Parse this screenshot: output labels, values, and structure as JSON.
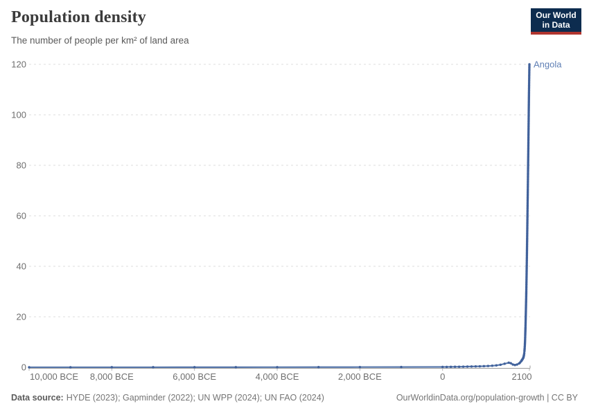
{
  "header": {
    "title": "Population density",
    "subtitle": "The number of people per km² of land area"
  },
  "logo": {
    "line1": "Our World",
    "line2": "in Data"
  },
  "footer": {
    "source_label": "Data source:",
    "sources": "HYDE (2023); Gapminder (2022); UN WPP (2024); UN FAO (2024)",
    "link": "OurWorldinData.org/population-growth | CC BY"
  },
  "colors": {
    "line": "#5878ac",
    "point": "#40619b",
    "entity_label": "#6080b5",
    "grid": "#dcdcdc",
    "axis": "#9b9b9b",
    "tick": "#b5b5b5",
    "axis_text": "#6e6e6e",
    "title_text": "#3b3b3b",
    "logo_bg": "#0d2c4f",
    "logo_red": "#b0352f"
  },
  "chart_data": {
    "type": "line",
    "title": "Population density",
    "subtitle": "The number of people per km² of land area",
    "entity": "Angola",
    "xlabel": "",
    "ylabel": "",
    "xlim": [
      -10000,
      2100
    ],
    "ylim": [
      0,
      120
    ],
    "grid": "horizontal-dashed",
    "legend": "entity-label-at-line-end",
    "yticks": [
      0,
      20,
      40,
      60,
      80,
      100,
      120
    ],
    "ytick_labels": [
      "0",
      "20",
      "40",
      "60",
      "80",
      "100",
      "120"
    ],
    "xticks": [
      -10000,
      -8000,
      -6000,
      -4000,
      -2000,
      0,
      2100
    ],
    "xtick_labels": [
      "10,000 BCE",
      "8,000 BCE",
      "6,000 BCE",
      "4,000 BCE",
      "2,000 BCE",
      "0",
      "2100"
    ],
    "series": [
      {
        "name": "Angola",
        "points": [
          [
            -10000,
            0.01
          ],
          [
            -9000,
            0.01
          ],
          [
            -8000,
            0.02
          ],
          [
            -7000,
            0.02
          ],
          [
            -6000,
            0.03
          ],
          [
            -5000,
            0.04
          ],
          [
            -4000,
            0.05
          ],
          [
            -3000,
            0.06
          ],
          [
            -2000,
            0.08
          ],
          [
            -1000,
            0.1
          ],
          [
            0,
            0.13
          ],
          [
            100,
            0.15
          ],
          [
            200,
            0.17
          ],
          [
            300,
            0.19
          ],
          [
            400,
            0.21
          ],
          [
            500,
            0.24
          ],
          [
            600,
            0.27
          ],
          [
            700,
            0.3
          ],
          [
            800,
            0.34
          ],
          [
            900,
            0.38
          ],
          [
            1000,
            0.43
          ],
          [
            1100,
            0.5
          ],
          [
            1200,
            0.6
          ],
          [
            1300,
            0.75
          ],
          [
            1400,
            1.0
          ],
          [
            1500,
            1.4
          ],
          [
            1600,
            1.8
          ],
          [
            1650,
            1.6
          ],
          [
            1700,
            1.1
          ],
          [
            1750,
            0.9
          ],
          [
            1800,
            1.1
          ],
          [
            1850,
            1.5
          ],
          [
            1875,
            1.9
          ],
          [
            1900,
            2.4
          ],
          [
            1910,
            2.6
          ],
          [
            1920,
            2.9
          ],
          [
            1930,
            3.1
          ],
          [
            1940,
            3.4
          ],
          [
            1950,
            3.7
          ],
          [
            1955,
            3.9
          ],
          [
            1960,
            4.2
          ],
          [
            1965,
            4.6
          ],
          [
            1970,
            5.0
          ],
          [
            1975,
            5.6
          ],
          [
            1980,
            6.4
          ],
          [
            1985,
            7.5
          ],
          [
            1990,
            8.8
          ],
          [
            1995,
            10.5
          ],
          [
            2000,
            13.1
          ],
          [
            2005,
            15.8
          ],
          [
            2010,
            19.0
          ],
          [
            2015,
            22.6
          ],
          [
            2020,
            26.2
          ],
          [
            2023,
            28.6
          ],
          [
            2025,
            30.2
          ],
          [
            2030,
            34.8
          ],
          [
            2035,
            39.7
          ],
          [
            2040,
            44.9
          ],
          [
            2045,
            50.4
          ],
          [
            2050,
            56.2
          ],
          [
            2055,
            62.2
          ],
          [
            2060,
            68.5
          ],
          [
            2065,
            75.0
          ],
          [
            2070,
            81.7
          ],
          [
            2075,
            88.5
          ],
          [
            2080,
            95.4
          ],
          [
            2085,
            102.3
          ],
          [
            2090,
            109.0
          ],
          [
            2095,
            114.9
          ],
          [
            2100,
            120
          ]
        ]
      }
    ]
  }
}
